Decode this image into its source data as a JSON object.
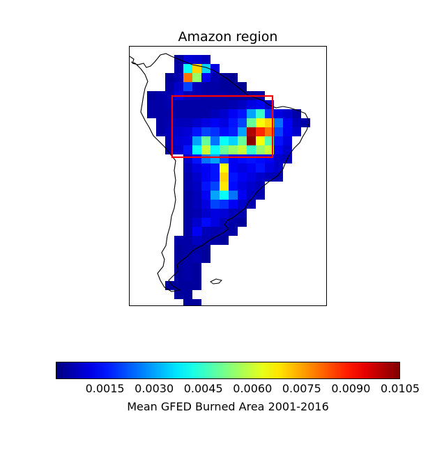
{
  "title": "Amazon region",
  "colorbar": {
    "label": "Mean GFED Burned Area 2001-2016",
    "min": 0.0,
    "max": 0.0105,
    "ticks": [
      "0.0015",
      "0.0030",
      "0.0045",
      "0.0060",
      "0.0075",
      "0.0090",
      "0.0105"
    ],
    "colormap": "jet"
  },
  "highlight_box": {
    "color": "#ff0000"
  },
  "heatmap_rows": [
    {
      "row": 0,
      "cells": [
        [
          4,
          0.0003
        ],
        [
          5,
          0.0009
        ],
        [
          6,
          0.0008
        ],
        [
          7,
          0.0006
        ]
      ]
    },
    {
      "row": 1,
      "cells": [
        [
          4,
          0.0004
        ],
        [
          5,
          0.004
        ],
        [
          6,
          0.007
        ],
        [
          7,
          0.0035
        ],
        [
          8,
          0.001
        ]
      ]
    },
    {
      "row": 2,
      "cells": [
        [
          3,
          0.0003
        ],
        [
          4,
          0.0005
        ],
        [
          5,
          0.008
        ],
        [
          6,
          0.0055
        ],
        [
          7,
          0.0012
        ],
        [
          8,
          0.0005
        ],
        [
          9,
          0.0003
        ],
        [
          10,
          0.0002
        ]
      ]
    },
    {
      "row": 3,
      "cells": [
        [
          3,
          0.0004
        ],
        [
          4,
          0.0008
        ],
        [
          5,
          0.002
        ],
        [
          6,
          0.0006
        ],
        [
          7,
          0.0004
        ],
        [
          8,
          0.0004
        ],
        [
          9,
          0.0003
        ],
        [
          10,
          0.0003
        ],
        [
          11,
          0.0002
        ]
      ]
    },
    {
      "row": 4,
      "cells": [
        [
          1,
          0.0003
        ],
        [
          2,
          0.0004
        ],
        [
          3,
          0.0005
        ],
        [
          4,
          0.001
        ],
        [
          5,
          0.0006
        ],
        [
          6,
          0.0005
        ],
        [
          7,
          0.0004
        ],
        [
          8,
          0.0004
        ],
        [
          9,
          0.0004
        ],
        [
          10,
          0.0003
        ],
        [
          11,
          0.0003
        ],
        [
          12,
          0.0003
        ],
        [
          13,
          0.0004
        ]
      ]
    },
    {
      "row": 5,
      "cells": [
        [
          1,
          0.0004
        ],
        [
          2,
          0.0004
        ],
        [
          3,
          0.0005
        ],
        [
          4,
          0.0004
        ],
        [
          5,
          0.0004
        ],
        [
          6,
          0.0004
        ],
        [
          7,
          0.0004
        ],
        [
          8,
          0.0004
        ],
        [
          9,
          0.0004
        ],
        [
          10,
          0.0005
        ],
        [
          11,
          0.0007
        ],
        [
          12,
          0.001
        ],
        [
          13,
          0.0012
        ],
        [
          14,
          0.0008
        ]
      ]
    },
    {
      "row": 6,
      "cells": [
        [
          1,
          0.0004
        ],
        [
          2,
          0.0004
        ],
        [
          3,
          0.0004
        ],
        [
          4,
          0.0004
        ],
        [
          5,
          0.0004
        ],
        [
          6,
          0.0004
        ],
        [
          7,
          0.0004
        ],
        [
          8,
          0.0006
        ],
        [
          9,
          0.0008
        ],
        [
          10,
          0.0012
        ],
        [
          11,
          0.0015
        ],
        [
          12,
          0.003
        ],
        [
          13,
          0.0045
        ],
        [
          14,
          0.0018
        ],
        [
          15,
          0.001
        ],
        [
          16,
          0.0008
        ],
        [
          17,
          0.0004
        ]
      ]
    },
    {
      "row": 7,
      "cells": [
        [
          2,
          0.0004
        ],
        [
          3,
          0.0005
        ],
        [
          4,
          0.0006
        ],
        [
          5,
          0.0006
        ],
        [
          6,
          0.0008
        ],
        [
          7,
          0.001
        ],
        [
          8,
          0.0012
        ],
        [
          9,
          0.001
        ],
        [
          10,
          0.0015
        ],
        [
          11,
          0.002
        ],
        [
          12,
          0.005
        ],
        [
          13,
          0.0065
        ],
        [
          14,
          0.007
        ],
        [
          15,
          0.0025
        ],
        [
          16,
          0.0012
        ],
        [
          17,
          0.0006
        ],
        [
          18,
          0.0004
        ]
      ]
    },
    {
      "row": 8,
      "cells": [
        [
          2,
          0.0004
        ],
        [
          3,
          0.0006
        ],
        [
          4,
          0.0008
        ],
        [
          5,
          0.0009
        ],
        [
          6,
          0.0015
        ],
        [
          7,
          0.002
        ],
        [
          8,
          0.0018
        ],
        [
          9,
          0.0014
        ],
        [
          10,
          0.0016
        ],
        [
          11,
          0.003
        ],
        [
          12,
          0.01
        ],
        [
          13,
          0.0088
        ],
        [
          14,
          0.008
        ],
        [
          15,
          0.002
        ],
        [
          16,
          0.0012
        ],
        [
          17,
          0.0008
        ]
      ]
    },
    {
      "row": 9,
      "cells": [
        [
          3,
          0.0005
        ],
        [
          4,
          0.0009
        ],
        [
          5,
          0.001
        ],
        [
          6,
          0.003
        ],
        [
          7,
          0.005
        ],
        [
          8,
          0.0025
        ],
        [
          9,
          0.004
        ],
        [
          10,
          0.0035
        ],
        [
          11,
          0.005
        ],
        [
          12,
          0.0104
        ],
        [
          13,
          0.0065
        ],
        [
          14,
          0.0048
        ],
        [
          15,
          0.0015
        ],
        [
          16,
          0.001
        ]
      ]
    },
    {
      "row": 10,
      "cells": [
        [
          3,
          0.0004
        ],
        [
          4,
          0.0008
        ],
        [
          5,
          0.0015
        ],
        [
          6,
          0.004
        ],
        [
          7,
          0.006
        ],
        [
          8,
          0.004
        ],
        [
          9,
          0.005
        ],
        [
          10,
          0.0055
        ],
        [
          11,
          0.006
        ],
        [
          12,
          0.0045
        ],
        [
          13,
          0.0055
        ],
        [
          14,
          0.006
        ],
        [
          15,
          0.0012
        ],
        [
          16,
          0.0008
        ]
      ]
    },
    {
      "row": 11,
      "cells": [
        [
          5,
          0.0008
        ],
        [
          6,
          0.0015
        ],
        [
          7,
          0.0025
        ],
        [
          8,
          0.003
        ],
        [
          9,
          0.002
        ],
        [
          10,
          0.0012
        ],
        [
          11,
          0.0014
        ],
        [
          12,
          0.0015
        ],
        [
          13,
          0.0014
        ],
        [
          14,
          0.0012
        ],
        [
          15,
          0.0008
        ],
        [
          16,
          0.0006
        ]
      ]
    },
    {
      "row": 12,
      "cells": [
        [
          5,
          0.0006
        ],
        [
          6,
          0.001
        ],
        [
          7,
          0.0012
        ],
        [
          8,
          0.0015
        ],
        [
          9,
          0.0065
        ],
        [
          10,
          0.0012
        ],
        [
          11,
          0.001
        ],
        [
          12,
          0.0012
        ],
        [
          13,
          0.0015
        ],
        [
          14,
          0.001
        ],
        [
          15,
          0.0008
        ]
      ]
    },
    {
      "row": 13,
      "cells": [
        [
          5,
          0.0005
        ],
        [
          6,
          0.0008
        ],
        [
          7,
          0.0012
        ],
        [
          8,
          0.0015
        ],
        [
          9,
          0.007
        ],
        [
          10,
          0.0015
        ],
        [
          11,
          0.0012
        ],
        [
          12,
          0.001
        ],
        [
          13,
          0.0008
        ],
        [
          14,
          0.0006
        ],
        [
          15,
          0.0005
        ]
      ]
    },
    {
      "row": 14,
      "cells": [
        [
          5,
          0.0005
        ],
        [
          6,
          0.0007
        ],
        [
          7,
          0.0015
        ],
        [
          8,
          0.002
        ],
        [
          9,
          0.0068
        ],
        [
          10,
          0.0014
        ],
        [
          11,
          0.001
        ],
        [
          12,
          0.0008
        ],
        [
          13,
          0.0006
        ]
      ]
    },
    {
      "row": 15,
      "cells": [
        [
          5,
          0.0004
        ],
        [
          6,
          0.0006
        ],
        [
          7,
          0.0012
        ],
        [
          8,
          0.003
        ],
        [
          9,
          0.004
        ],
        [
          10,
          0.0025
        ],
        [
          11,
          0.0012
        ],
        [
          12,
          0.0007
        ],
        [
          13,
          0.0005
        ]
      ]
    },
    {
      "row": 16,
      "cells": [
        [
          5,
          0.0004
        ],
        [
          6,
          0.0006
        ],
        [
          7,
          0.001
        ],
        [
          8,
          0.002
        ],
        [
          9,
          0.0018
        ],
        [
          10,
          0.0012
        ],
        [
          11,
          0.0008
        ],
        [
          12,
          0.0005
        ]
      ]
    },
    {
      "row": 17,
      "cells": [
        [
          5,
          0.0004
        ],
        [
          6,
          0.0005
        ],
        [
          7,
          0.0008
        ],
        [
          8,
          0.001
        ],
        [
          9,
          0.0009
        ],
        [
          10,
          0.0006
        ],
        [
          11,
          0.0005
        ]
      ]
    },
    {
      "row": 18,
      "cells": [
        [
          5,
          0.0004
        ],
        [
          6,
          0.0008
        ],
        [
          7,
          0.0014
        ],
        [
          8,
          0.001
        ],
        [
          9,
          0.0006
        ],
        [
          10,
          0.0004
        ],
        [
          11,
          0.0003
        ]
      ]
    },
    {
      "row": 19,
      "cells": [
        [
          5,
          0.0004
        ],
        [
          6,
          0.0012
        ],
        [
          7,
          0.0006
        ],
        [
          8,
          0.0005
        ],
        [
          9,
          0.0005
        ],
        [
          10,
          0.0004
        ]
      ]
    },
    {
      "row": 20,
      "cells": [
        [
          4,
          0.0004
        ],
        [
          5,
          0.0004
        ],
        [
          6,
          0.0007
        ],
        [
          7,
          0.0005
        ],
        [
          8,
          0.0004
        ],
        [
          9,
          0.0003
        ]
      ]
    },
    {
      "row": 21,
      "cells": [
        [
          4,
          0.0003
        ],
        [
          5,
          0.0004
        ],
        [
          6,
          0.0004
        ],
        [
          7,
          0.0003
        ]
      ]
    },
    {
      "row": 22,
      "cells": [
        [
          4,
          0.0003
        ],
        [
          5,
          0.0004
        ],
        [
          6,
          0.0005
        ],
        [
          7,
          0.0003
        ]
      ]
    },
    {
      "row": 23,
      "cells": [
        [
          4,
          0.0003
        ],
        [
          5,
          0.0004
        ],
        [
          6,
          0.0003
        ]
      ]
    },
    {
      "row": 24,
      "cells": [
        [
          4,
          0.0003
        ],
        [
          5,
          0.0004
        ],
        [
          6,
          0.0003
        ]
      ]
    },
    {
      "row": 25,
      "cells": [
        [
          3,
          0.0003
        ],
        [
          4,
          0.0003
        ],
        [
          5,
          0.0003
        ],
        [
          6,
          0.0003
        ]
      ]
    },
    {
      "row": 26,
      "cells": [
        [
          4,
          0.0003
        ],
        [
          5,
          0.0003
        ]
      ]
    },
    {
      "row": 27,
      "cells": [
        [
          5,
          0.0003
        ],
        [
          6,
          0.0003
        ]
      ]
    }
  ]
}
